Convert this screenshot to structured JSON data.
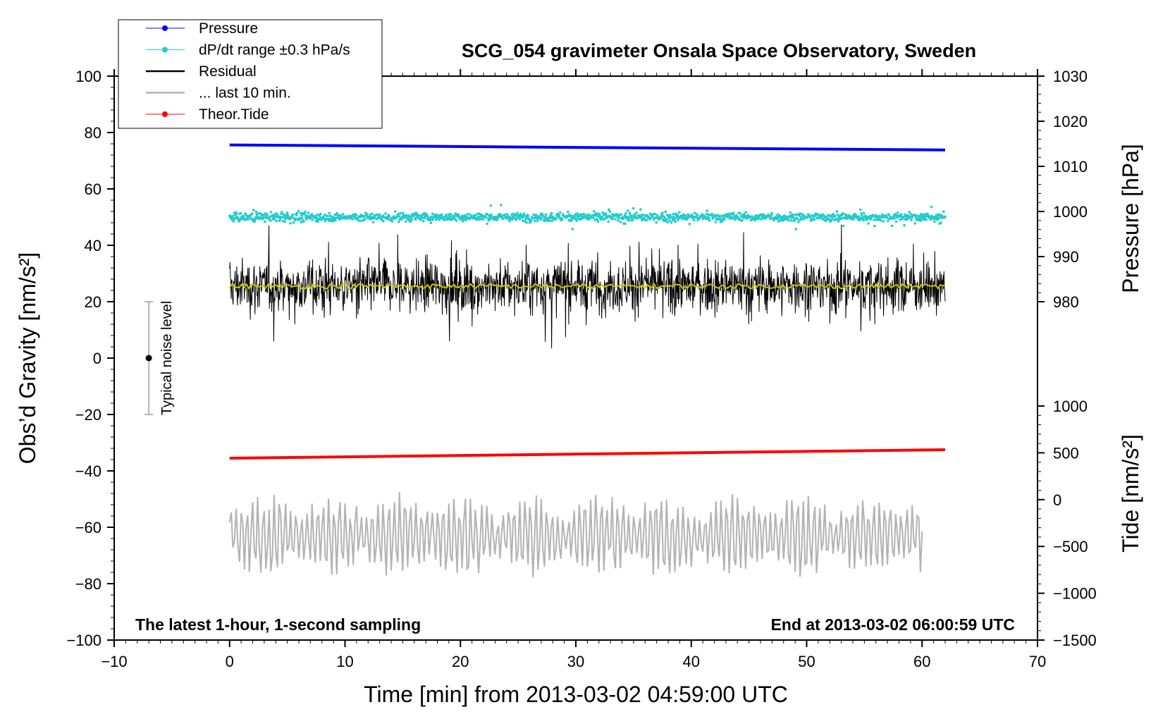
{
  "chart_data": {
    "type": "line",
    "title": "SCG_054 gravimeter Onsala Space Observatory, Sweden",
    "xlabel": "Time [min] from 2013-03-02 04:59:00 UTC",
    "ylabel_left": "Obs’d Gravity [nm/s²]",
    "ylabel_right_pressure": "Pressure [hPa]",
    "ylabel_right_tide": "Tide [nm/s²]",
    "xlim": [
      -10,
      70
    ],
    "ylim": [
      -100,
      100
    ],
    "x_ticks": [
      -10,
      0,
      10,
      20,
      30,
      40,
      50,
      60,
      70
    ],
    "x_tick_labels": [
      "−10",
      "0",
      "10",
      "20",
      "30",
      "40",
      "50",
      "60",
      "70"
    ],
    "y_ticks": [
      100,
      80,
      60,
      40,
      20,
      0,
      -20,
      -40,
      -60,
      -80,
      -100
    ],
    "y_tick_labels": [
      "100",
      "80",
      "60",
      "40",
      "20",
      "0",
      "−20",
      "−40",
      "−60",
      "−80",
      "−100"
    ],
    "pressure_axis": {
      "range": [
        980,
        1030
      ],
      "ticks": [
        1030,
        1020,
        1010,
        1000,
        990,
        980
      ],
      "tick_labels": [
        "1030",
        "1020",
        "1010",
        "1000",
        "990",
        "980"
      ],
      "left_at_1030": 100,
      "left_at_980": 20
    },
    "tide_axis": {
      "range": [
        -1500,
        1000
      ],
      "ticks": [
        1000,
        500,
        0,
        -500,
        -1000,
        -1500
      ],
      "tick_labels": [
        "1000",
        "500",
        "0",
        "−500",
        "−1000",
        "−1500"
      ],
      "left_at_1000": -17,
      "left_at_minus1500": -100
    },
    "legend": {
      "position": "top-left",
      "entries": [
        {
          "label": "Pressure",
          "color": "#0000ff",
          "style": "line-dot"
        },
        {
          "label": "dP/dt range ±0.3 hPa/s",
          "color": "#22cccc",
          "style": "line-dot"
        },
        {
          "label": "Residual",
          "color": "#000000",
          "style": "line"
        },
        {
          "label": "... last 10 min.",
          "color": "#b3b3b3",
          "style": "line"
        },
        {
          "label": "Theor.Tide",
          "color": "#ff0000",
          "style": "line-dot"
        }
      ]
    },
    "series": [
      {
        "name": "Pressure",
        "color": "#0000ff",
        "axis": "left",
        "x": [
          0,
          62
        ],
        "y": [
          75.6,
          73.8
        ]
      },
      {
        "name": "dP/dt range ±0.3 hPa/s",
        "color": "#22cccc",
        "axis": "left",
        "x_range": [
          0,
          62
        ],
        "center": 50,
        "spread": 3
      },
      {
        "name": "Residual",
        "color": "#000000",
        "axis": "left",
        "x_range": [
          0,
          62
        ],
        "center": 25.5,
        "spread": 12
      },
      {
        "name": "Residual (smoothed)",
        "color": "#c8c800",
        "axis": "left",
        "x_range": [
          0,
          62
        ],
        "center": 25.5,
        "spread": 0.8
      },
      {
        "name": "Theor.Tide",
        "color": "#ff0000",
        "axis": "left",
        "x": [
          0,
          62
        ],
        "y": [
          -35.5,
          -32.5
        ]
      },
      {
        "name": "... last 10 min.",
        "color": "#b3b3b3",
        "axis": "left",
        "x_range": [
          0,
          60
        ],
        "center": -63,
        "spread": 12
      }
    ],
    "noise_bar": {
      "label": "Typical noise level",
      "x": -7,
      "center": 0,
      "low": -20,
      "high": 20
    },
    "annotations": {
      "bottom_left": "The latest 1-hour, 1-second sampling",
      "bottom_right": "End at 2013-03-02 06:00:59 UTC"
    }
  }
}
